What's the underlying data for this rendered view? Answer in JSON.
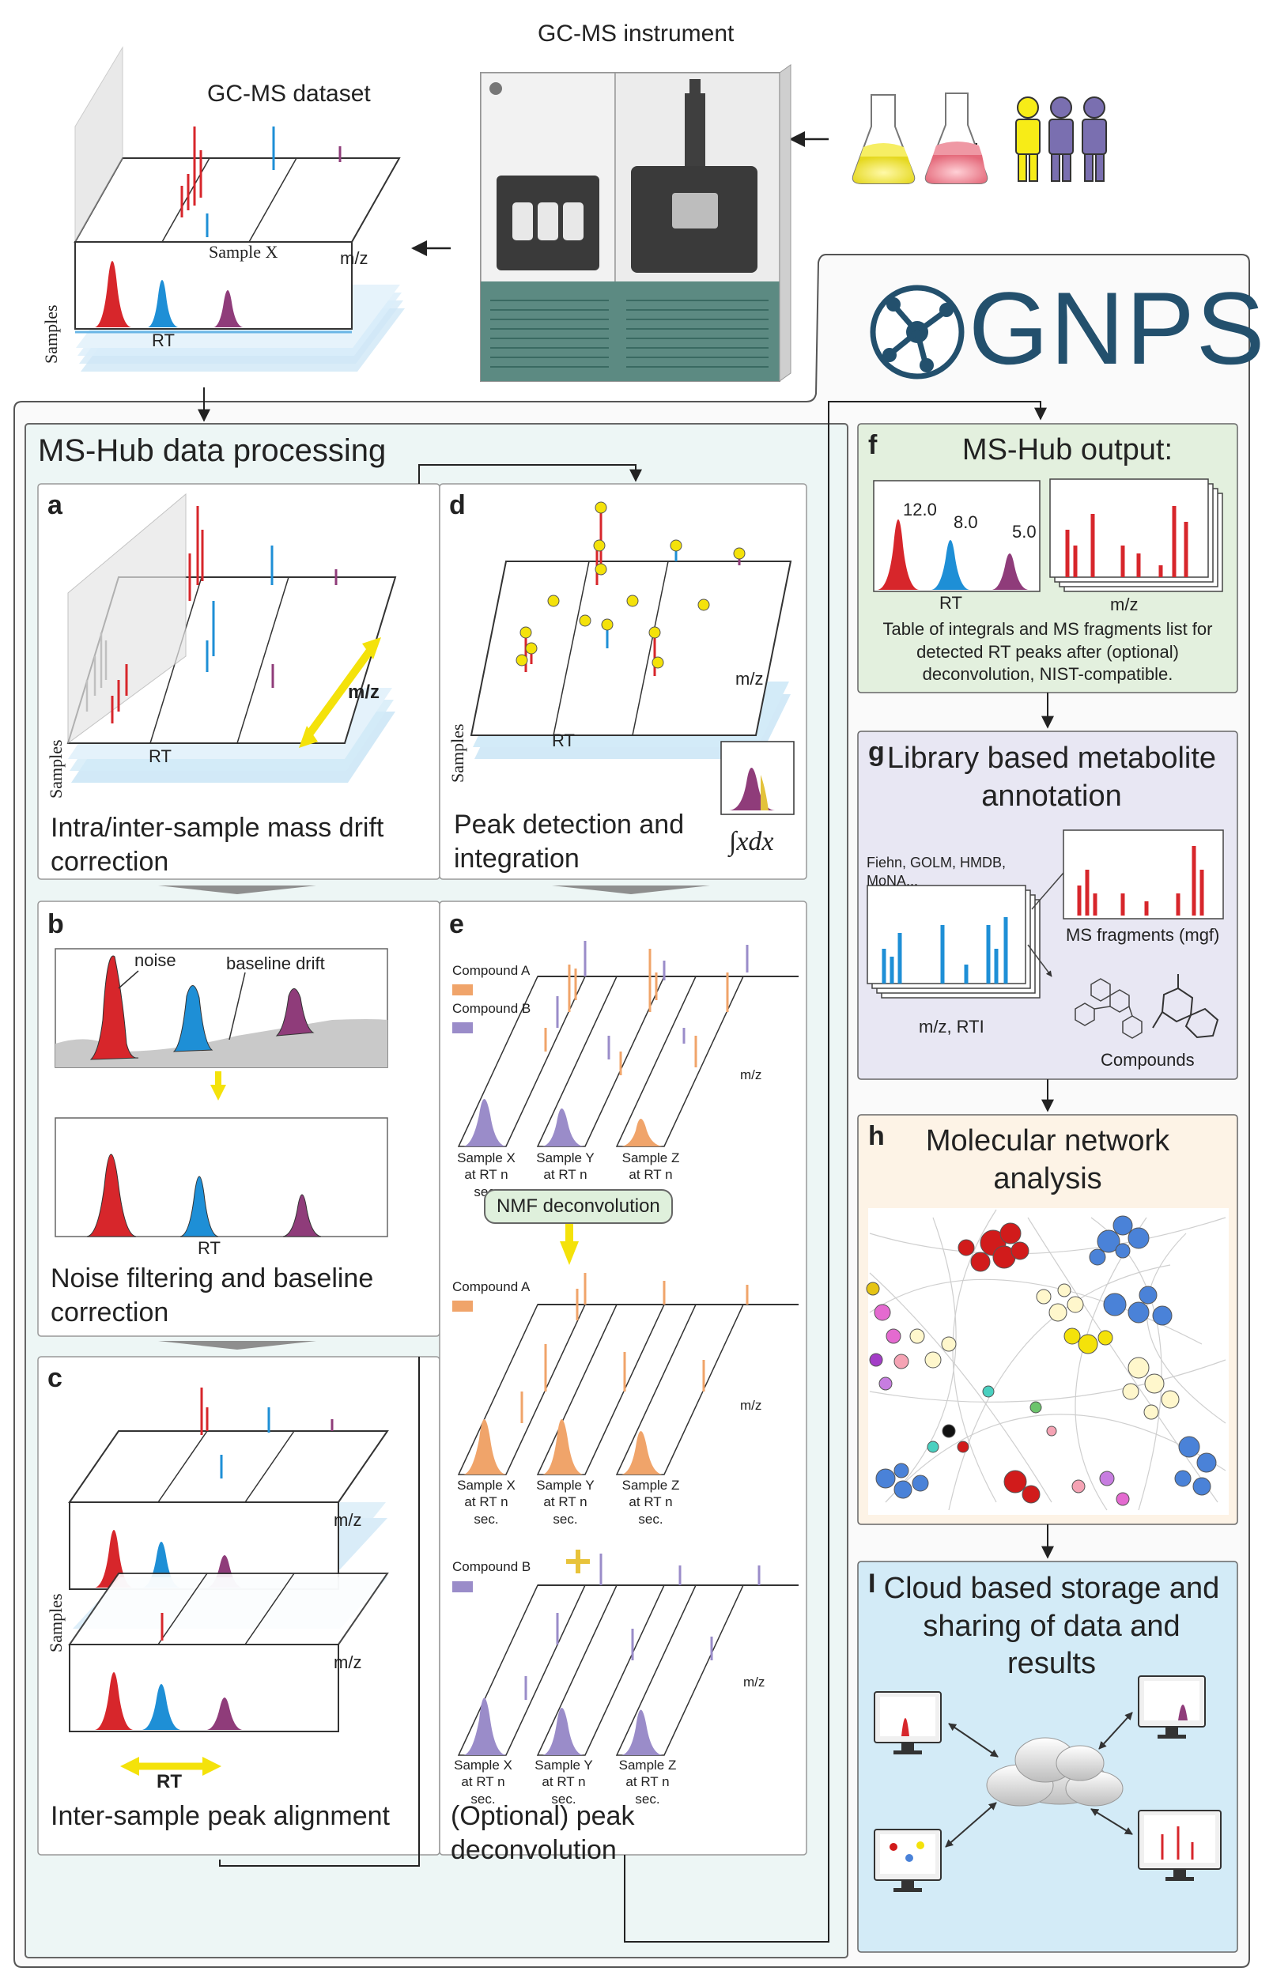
{
  "top": {
    "instrument_title": "GC-MS instrument",
    "dataset_title": "GC-MS dataset",
    "sample_x": "Sample X",
    "mz": "m/z",
    "rt": "RT",
    "samples": "Samples"
  },
  "gnps": {
    "logo_text": "GNPS"
  },
  "mshub": {
    "title": "MS-Hub data processing"
  },
  "panel_a": {
    "letter": "a",
    "mz": "m/z",
    "rt": "RT",
    "samples": "Samples",
    "caption": "Intra/inter-sample mass drift correction"
  },
  "panel_b": {
    "letter": "b",
    "noise": "noise",
    "baseline": "baseline drift",
    "rt": "RT",
    "caption": "Noise filtering and baseline correction"
  },
  "panel_c": {
    "letter": "c",
    "mz1": "m/z",
    "mz2": "m/z",
    "samples": "Samples",
    "rt": "RT",
    "caption": "Inter-sample peak alignment"
  },
  "panel_d": {
    "letter": "d",
    "mz": "m/z",
    "rt": "RT",
    "samples": "Samples",
    "integral": "∫xdx",
    "caption": "Peak detection and integration"
  },
  "panel_e": {
    "letter": "e",
    "compound_a": "Compound A",
    "compound_b": "Compound B",
    "mz": "m/z",
    "nmf": "NMF deconvolution",
    "samples": [
      {
        "name": "Sample X",
        "rt": "at RT n sec."
      },
      {
        "name": "Sample Y",
        "rt": "at RT n sec."
      },
      {
        "name": "Sample Z",
        "rt": "at RT n sec."
      }
    ],
    "caption": "(Optional) peak deconvolution"
  },
  "panel_f": {
    "letter": "f",
    "title": "MS-Hub output:",
    "peak_values": [
      "12.0",
      "8.0",
      "5.0"
    ],
    "rt": "RT",
    "mz": "m/z",
    "description": "Table of integrals and MS fragments list for detected RT peaks after (optional) deconvolution, NIST-compatible."
  },
  "panel_g": {
    "letter": "g",
    "title": "Library based metabolite annotation",
    "libraries": "Fiehn, GOLM, HMDB, MoNA...",
    "fragments": "MS fragments (mgf)",
    "mzrti": "m/z, RTI",
    "compounds": "Compounds"
  },
  "panel_h": {
    "letter": "h",
    "title": "Molecular network analysis"
  },
  "panel_i": {
    "letter": "I",
    "title": "Cloud based storage and sharing of data and results"
  },
  "colors": {
    "red": "#d7262b",
    "blue": "#1e8fd6",
    "purple": "#8f3c7a",
    "orange": "#f0a46a",
    "lavender": "#9a8cc9",
    "gnps_blue": "#23506d",
    "mshub_bg": "#edf6f5",
    "f_bg": "#e3f0de",
    "g_bg": "#e8e7f3",
    "h_bg": "#fdf3e6",
    "i_bg": "#d3ebf7"
  }
}
